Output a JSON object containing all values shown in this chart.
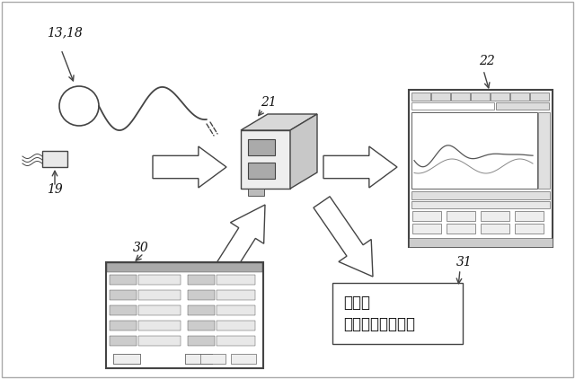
{
  "bg_color": "#ffffff",
  "fg_color": "#333333",
  "labels": {
    "13_18": "13,18",
    "19": "19",
    "21": "21",
    "22": "22",
    "30": "30",
    "31": "31"
  },
  "japanese_line1": "ホーム",
  "japanese_line2": "オートメーション"
}
